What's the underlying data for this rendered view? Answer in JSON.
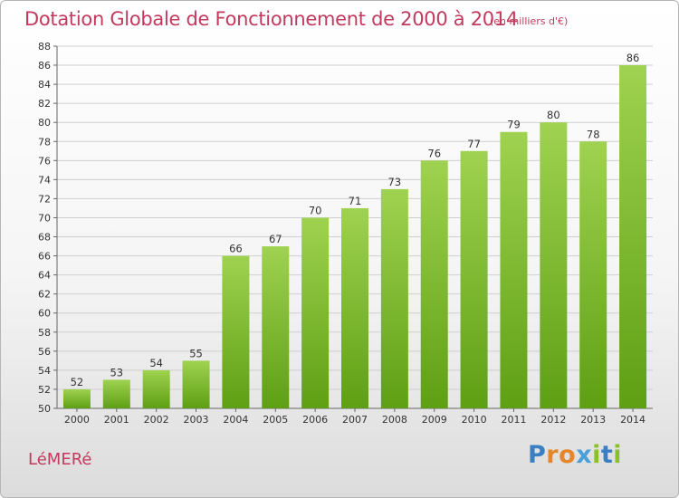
{
  "title": "Dotation Globale de Fonctionnement de 2000 à 2014",
  "subtitle": "(en milliers d'€)",
  "commune": "LéMERé",
  "brand": {
    "text": "Proxiti",
    "letter_colors": [
      "#3a7fc2",
      "#e5862b",
      "#e5862b",
      "#4aa0d8",
      "#8bbf2c",
      "#3a7fc2",
      "#8bbf2c"
    ]
  },
  "colors": {
    "text_accent": "#c23a5e",
    "bar_light": "#9fd250",
    "bar_dark": "#5e9f14",
    "grid": "#cfcfcf"
  },
  "chart_data": {
    "type": "bar",
    "title": "Dotation Globale de Fonctionnement de 2000 à 2014",
    "subtitle": "(en milliers d'€)",
    "xlabel": "",
    "ylabel": "",
    "categories": [
      "2000",
      "2001",
      "2002",
      "2003",
      "2004",
      "2005",
      "2006",
      "2007",
      "2008",
      "2009",
      "2010",
      "2011",
      "2012",
      "2013",
      "2014"
    ],
    "values": [
      52,
      53,
      54,
      55,
      66,
      67,
      70,
      71,
      73,
      76,
      77,
      79,
      80,
      78,
      86
    ],
    "ylim": [
      50,
      88
    ],
    "yticks": [
      50,
      52,
      54,
      56,
      58,
      60,
      62,
      64,
      66,
      68,
      70,
      72,
      74,
      76,
      78,
      80,
      82,
      84,
      86,
      88
    ],
    "grid": true,
    "data_labels": true
  }
}
